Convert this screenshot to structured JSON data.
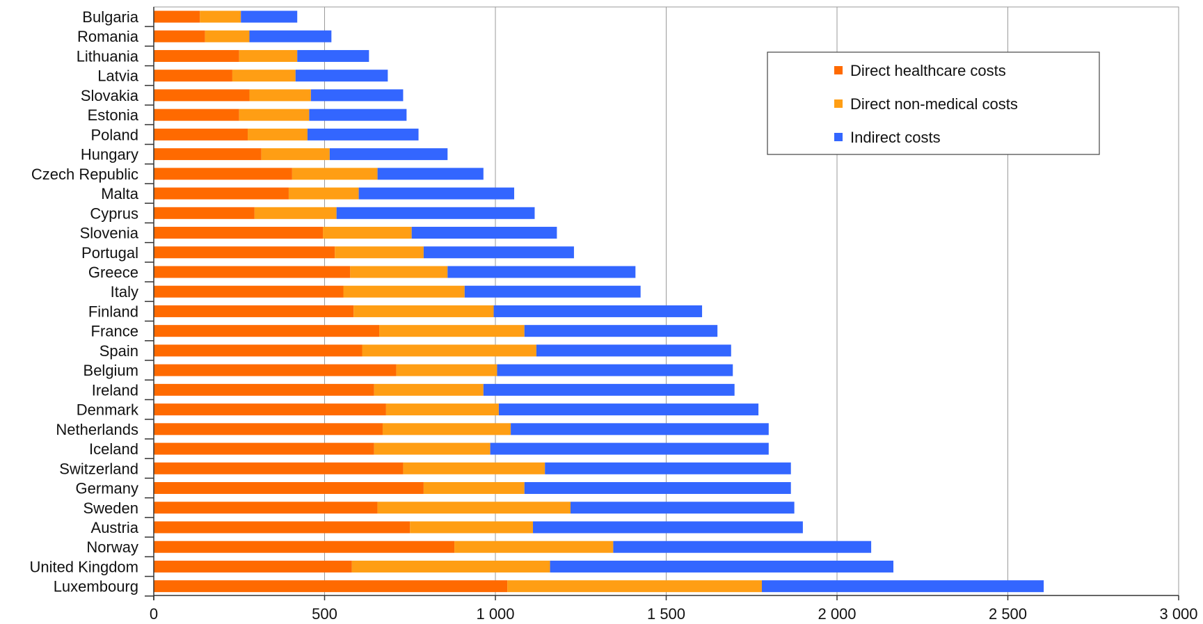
{
  "chart_data": {
    "type": "bar",
    "orientation": "horizontal",
    "stacked": true,
    "categories": [
      "Bulgaria",
      "Romania",
      "Lithuania",
      "Latvia",
      "Slovakia",
      "Estonia",
      "Poland",
      "Hungary",
      "Czech Republic",
      "Malta",
      "Cyprus",
      "Slovenia",
      "Portugal",
      "Greece",
      "Italy",
      "Finland",
      "France",
      "Spain",
      "Belgium",
      "Ireland",
      "Denmark",
      "Netherlands",
      "Iceland",
      "Switzerland",
      "Germany",
      "Sweden",
      "Austria",
      "Norway",
      "United Kingdom",
      "Luxembourg"
    ],
    "series": [
      {
        "name": "Direct healthcare costs",
        "color": "#ff6a00",
        "values": [
          135,
          150,
          250,
          230,
          280,
          250,
          275,
          315,
          405,
          395,
          295,
          495,
          530,
          575,
          555,
          585,
          660,
          610,
          710,
          645,
          680,
          670,
          645,
          730,
          790,
          655,
          750,
          880,
          580,
          1035
        ]
      },
      {
        "name": "Direct non-medical costs",
        "color": "#ff9e14",
        "values": [
          120,
          130,
          170,
          185,
          180,
          205,
          175,
          200,
          250,
          205,
          240,
          260,
          260,
          285,
          355,
          410,
          425,
          510,
          295,
          320,
          330,
          375,
          340,
          415,
          295,
          565,
          360,
          465,
          580,
          745
        ]
      },
      {
        "name": "Indirect costs",
        "color": "#3366ff",
        "values": [
          165,
          240,
          210,
          270,
          270,
          285,
          325,
          345,
          310,
          455,
          580,
          425,
          440,
          550,
          515,
          610,
          565,
          570,
          690,
          735,
          760,
          755,
          815,
          720,
          780,
          655,
          790,
          755,
          1005,
          825
        ]
      }
    ],
    "x_ticks": [
      "0",
      "500",
      "1 000",
      "1 500",
      "2 000",
      "2 500",
      "3 000"
    ],
    "xlim": [
      0,
      3000
    ],
    "grid": "vertical",
    "legend_position": "top-right"
  }
}
